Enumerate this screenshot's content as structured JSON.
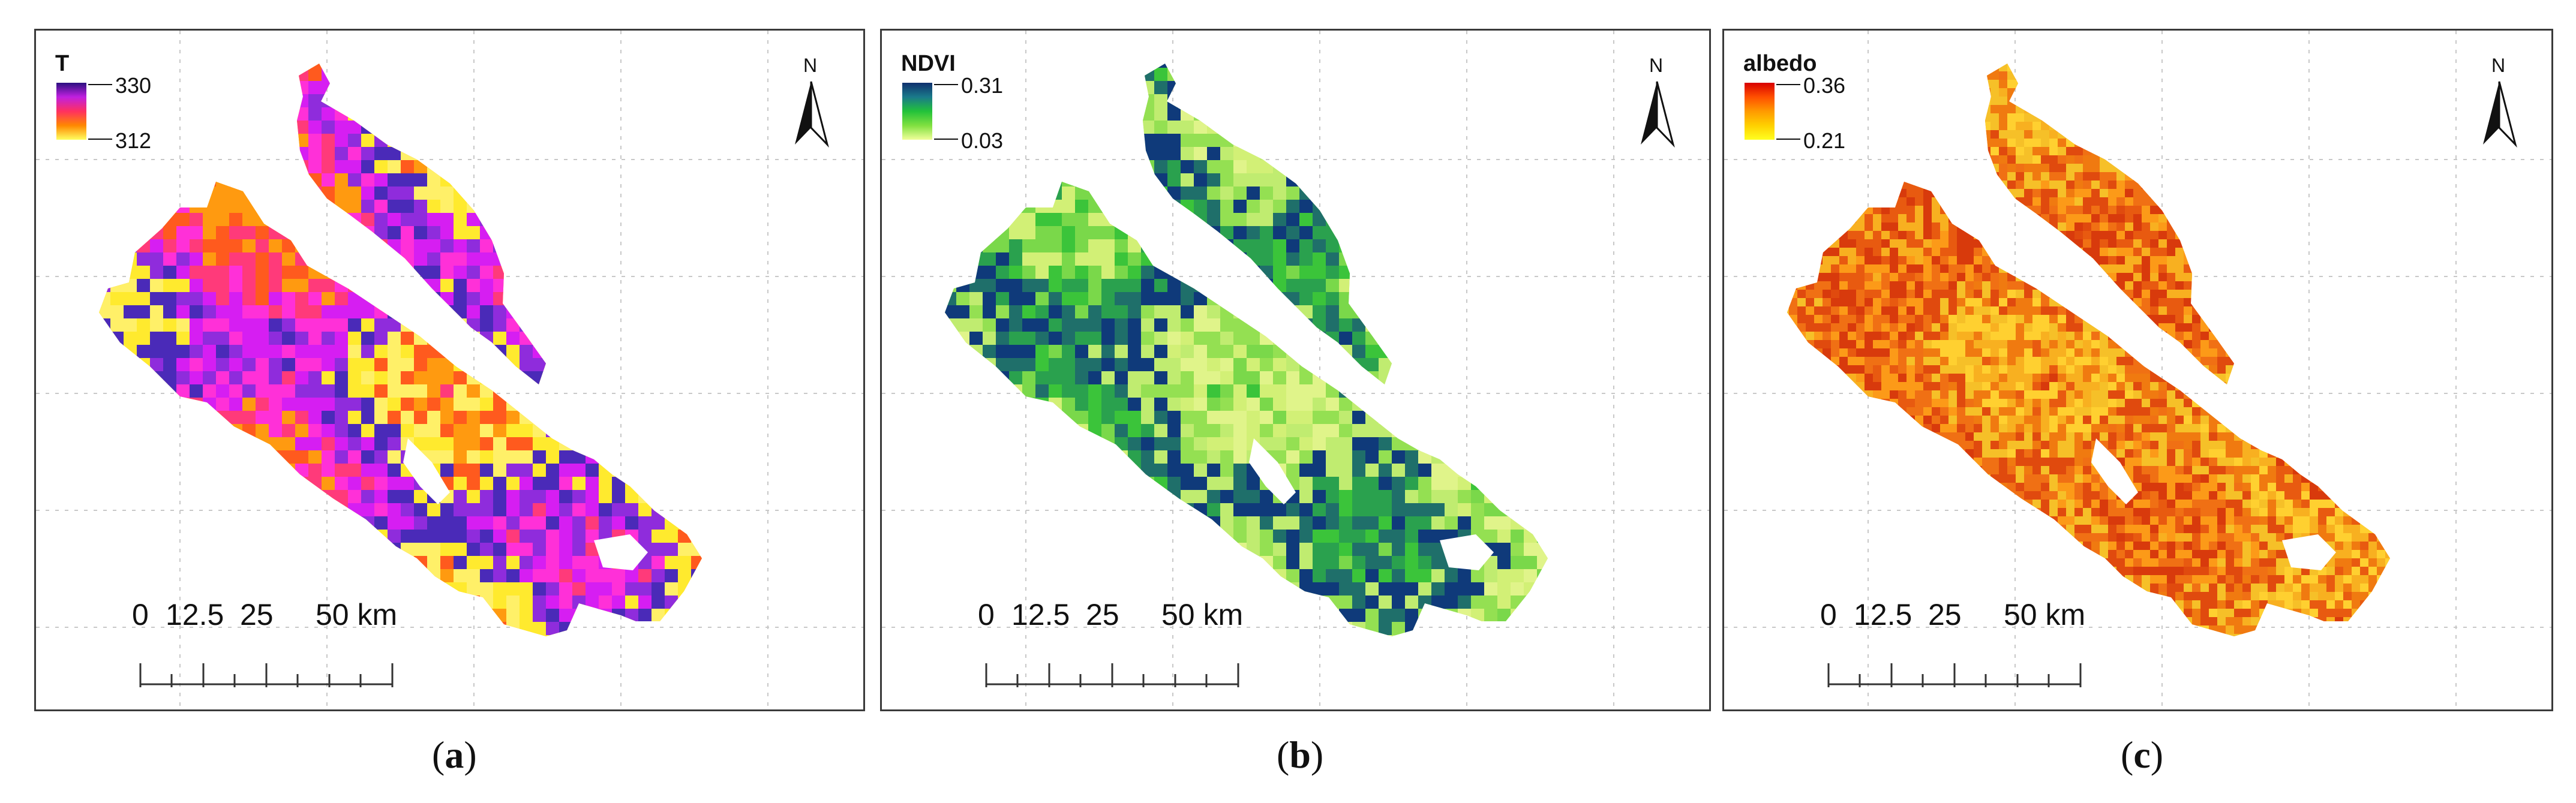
{
  "panels": [
    {
      "id": "a",
      "caption_letter": "a",
      "legend": {
        "title": "T",
        "max_label": "330",
        "min_label": "312",
        "gradient": [
          "#2b1080",
          "#c020e0",
          "#ff3060",
          "#ff8800",
          "#ffff60"
        ]
      },
      "map_colors": {
        "base": "#ffb000",
        "patches": [
          "#ff5a1e",
          "#ff9a10",
          "#ff3a7a",
          "#ff30d8",
          "#d61ef2",
          "#8f2cdc",
          "#4a2ab8",
          "#ffea2e",
          "#fff068"
        ]
      }
    },
    {
      "id": "b",
      "caption_letter": "b",
      "legend": {
        "title": "NDVI",
        "max_label": "0.31",
        "min_label": "0.03",
        "gradient": [
          "#10306e",
          "#1a7a8a",
          "#22c23a",
          "#80e040",
          "#f0ff9a"
        ]
      },
      "map_colors": {
        "base": "#a8e85c",
        "patches": [
          "#d2f076",
          "#7ad84a",
          "#3bc43a",
          "#2aa14e",
          "#1f6f6a",
          "#0f3a7a",
          "#c0ec70",
          "#94e052",
          "#e0f48a"
        ]
      }
    },
    {
      "id": "c",
      "caption_letter": "c",
      "legend": {
        "title": "albedo",
        "max_label": "0.36",
        "min_label": "0.21",
        "gradient": [
          "#d80000",
          "#ff5000",
          "#ff9a00",
          "#ffd000",
          "#ffff20"
        ]
      },
      "map_colors": {
        "base": "#f48c14",
        "patches": [
          "#f8b020",
          "#e85a10",
          "#d83a0c",
          "#fc9a18",
          "#f07014",
          "#e04a0e",
          "#f6c028",
          "#f07a10",
          "#ffd030"
        ]
      }
    }
  ],
  "scalebar": {
    "ticks": [
      "0",
      "12.5",
      "25",
      "50 km"
    ],
    "values_km": [
      0,
      12.5,
      25,
      50
    ]
  },
  "north_arrow": {
    "label": "N"
  }
}
